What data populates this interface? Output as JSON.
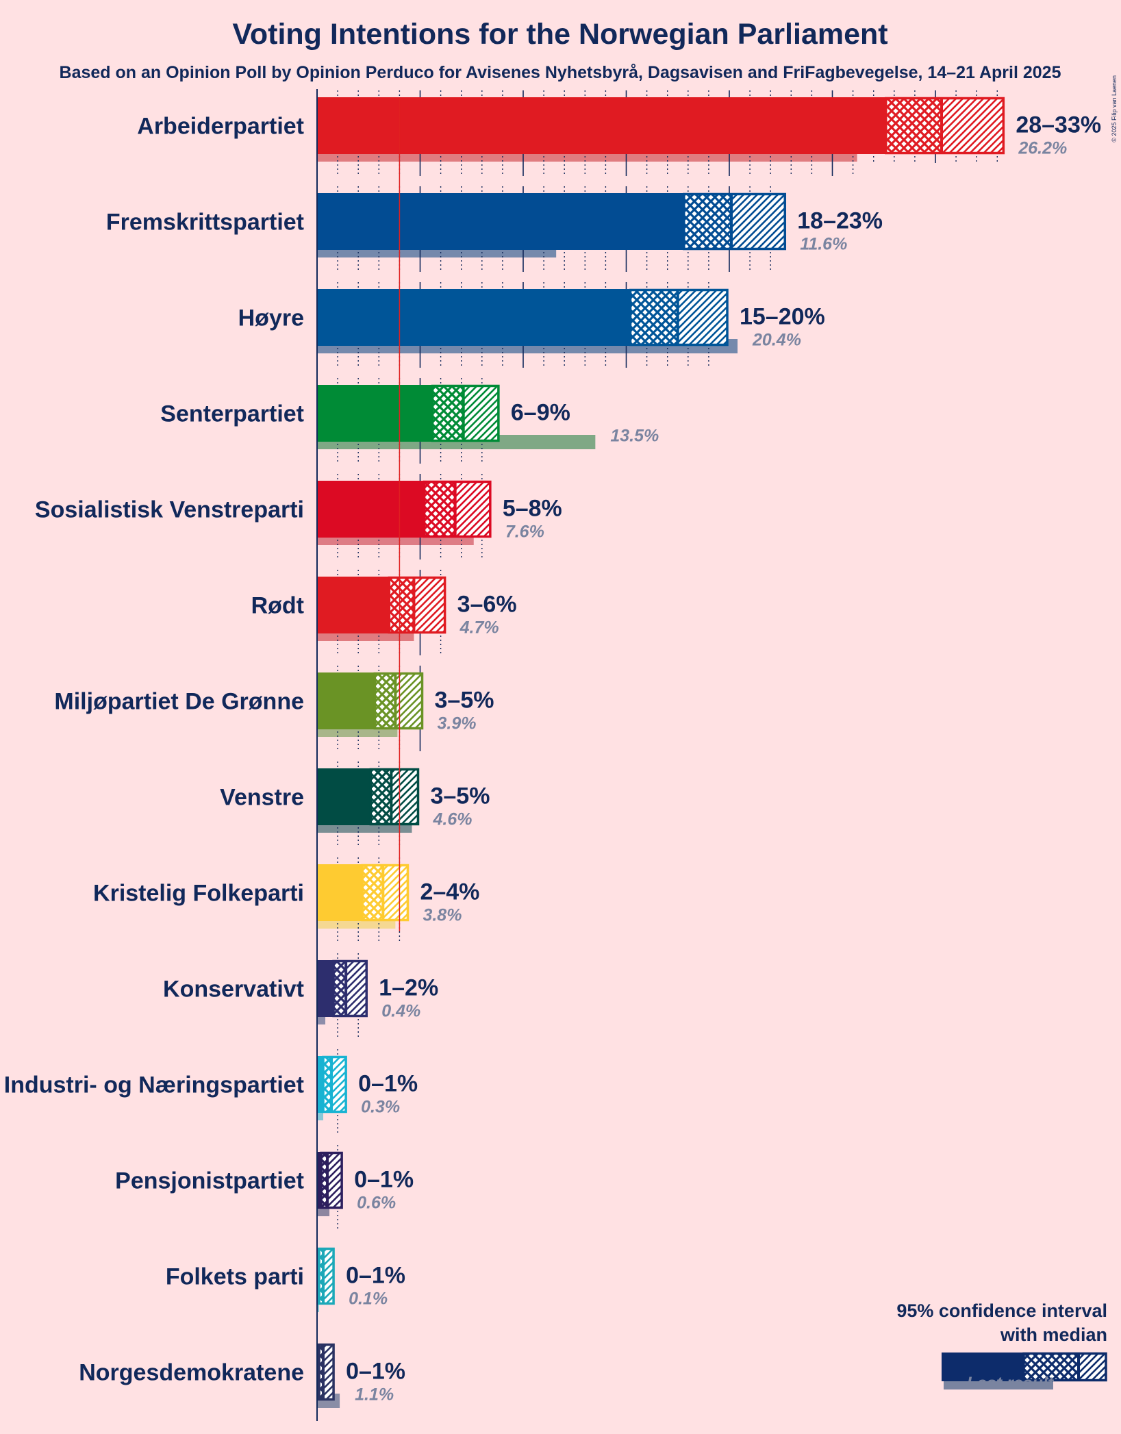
{
  "title": "Voting Intentions for the Norwegian Parliament",
  "subtitle": "Based on an Opinion Poll by Opinion Perduco for Avisenes Nyhetsbyrå, Dagsavisen and FriFagbevegelse, 14–21 April 2025",
  "copyright": "© 2025 Filip van Laenen",
  "legend": {
    "line1": "95% confidence interval",
    "line2": "with median",
    "last_result": "Last result",
    "color": "#0D2C6B"
  },
  "threshold": 4,
  "chart_data": {
    "type": "bar",
    "orientation": "horizontal",
    "unit": "%",
    "x_range": [
      0,
      33.5
    ],
    "series_description": "95% confidence interval (low, median, high) with last election result",
    "parties": [
      {
        "name": "Arbeiderpartiet",
        "range_label": "28–33%",
        "low": 27.6,
        "median": 30.3,
        "high": 33.3,
        "last": 26.2,
        "last_label": "26.2%",
        "color": "#E01B22",
        "last_color": "#E07C80"
      },
      {
        "name": "Fremskrittspartiet",
        "range_label": "18–23%",
        "low": 17.8,
        "median": 20.1,
        "high": 22.7,
        "last": 11.6,
        "last_label": "11.6%",
        "color": "#024C93",
        "last_color": "#7589AC"
      },
      {
        "name": "Høyre",
        "range_label": "15–20%",
        "low": 15.2,
        "median": 17.5,
        "high": 19.9,
        "last": 20.4,
        "last_label": "20.4%",
        "color": "#005598",
        "last_color": "#7589AC"
      },
      {
        "name": "Senterpartiet",
        "range_label": "6–9%",
        "low": 5.6,
        "median": 7.1,
        "high": 8.8,
        "last": 13.5,
        "last_label": "13.5%",
        "color": "#008B36",
        "last_color": "#7FA885"
      },
      {
        "name": "Sosialistisk Venstreparti",
        "range_label": "5–8%",
        "low": 5.2,
        "median": 6.7,
        "high": 8.4,
        "last": 7.6,
        "last_label": "7.6%",
        "color": "#DC0A23",
        "last_color": "#DE7C85"
      },
      {
        "name": "Rødt",
        "range_label": "3–6%",
        "low": 3.5,
        "median": 4.7,
        "high": 6.2,
        "last": 4.7,
        "last_label": "4.7%",
        "color": "#E01B22",
        "last_color": "#E07C80"
      },
      {
        "name": "Miljøpartiet De Grønne",
        "range_label": "3–5%",
        "low": 2.8,
        "median": 3.8,
        "high": 5.1,
        "last": 3.9,
        "last_label": "3.9%",
        "color": "#6A9325",
        "last_color": "#A8B68A"
      },
      {
        "name": "Venstre",
        "range_label": "3–5%",
        "low": 2.6,
        "median": 3.6,
        "high": 4.9,
        "last": 4.6,
        "last_label": "4.6%",
        "color": "#014C44",
        "last_color": "#7A8E93"
      },
      {
        "name": "Kristelig Folkeparti",
        "range_label": "2–4%",
        "low": 2.2,
        "median": 3.2,
        "high": 4.4,
        "last": 3.8,
        "last_label": "3.8%",
        "color": "#FECB31",
        "last_color": "#F5D892"
      },
      {
        "name": "Konservativt",
        "range_label": "1–2%",
        "low": 0.8,
        "median": 1.4,
        "high": 2.4,
        "last": 0.4,
        "last_label": "0.4%",
        "color": "#2D2E6E",
        "last_color": "#8D8DAA"
      },
      {
        "name": "Industri- og Næringspartiet",
        "range_label": "0–1%",
        "low": 0.3,
        "median": 0.7,
        "high": 1.4,
        "last": 0.3,
        "last_label": "0.3%",
        "color": "#18B3D2",
        "last_color": "#86C8D8"
      },
      {
        "name": "Pensjonistpartiet",
        "range_label": "0–1%",
        "low": 0.2,
        "median": 0.5,
        "high": 1.2,
        "last": 0.6,
        "last_label": "0.6%",
        "color": "#2D1F5E",
        "last_color": "#8D86A0"
      },
      {
        "name": "Folkets parti",
        "range_label": "0–1%",
        "low": 0.1,
        "median": 0.3,
        "high": 0.8,
        "last": 0.1,
        "last_label": "0.1%",
        "color": "#1CA8B8",
        "last_color": "#86C4CC"
      },
      {
        "name": "Norgesdemokratene",
        "range_label": "0–1%",
        "low": 0.1,
        "median": 0.3,
        "high": 0.8,
        "last": 1.1,
        "last_label": "1.1%",
        "color": "#2A3262",
        "last_color": "#8A8DA6"
      }
    ]
  }
}
